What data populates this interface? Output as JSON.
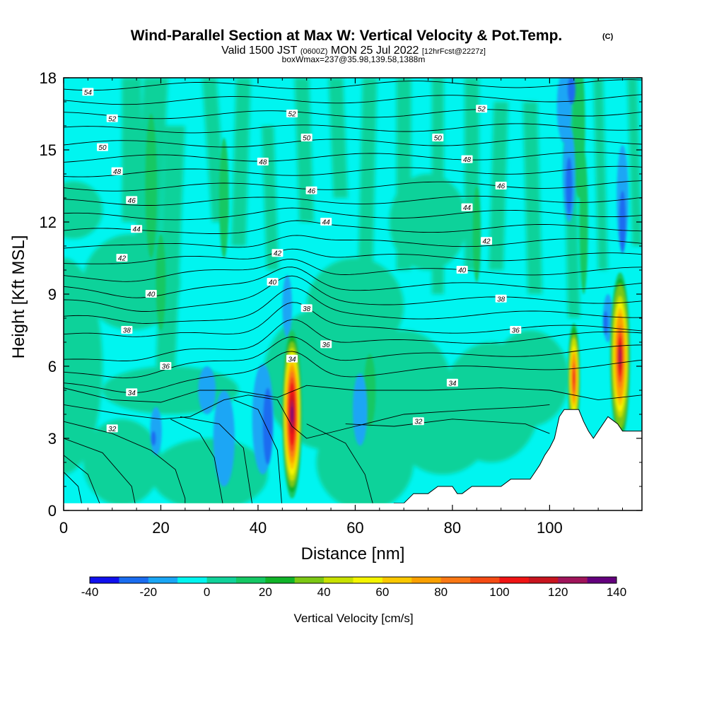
{
  "title": {
    "main": "Wind-Parallel Section at Max W: Vertical Velocity & Pot.Temp.",
    "copyright": "(C)",
    "valid_prefix": "Valid 1500 JST",
    "valid_utc": "(0600Z)",
    "valid_date": "MON 25 Jul 2022",
    "forecast": "[12hrFcst@2227z]",
    "box_info": "boxWmax=237@35.98,139.58,1388m"
  },
  "chart_data": {
    "type": "heatmap",
    "xlabel": "Distance [nm]",
    "ylabel": "Height [Kft MSL]",
    "xlim": [
      0,
      119
    ],
    "ylim": [
      0,
      18
    ],
    "x_ticks": [
      "0",
      "20",
      "40",
      "60",
      "80",
      "100"
    ],
    "x_tick_values": [
      0,
      20,
      40,
      60,
      80,
      100
    ],
    "y_ticks": [
      "0",
      "3",
      "6",
      "9",
      "12",
      "15",
      "18"
    ],
    "y_tick_values": [
      0,
      3,
      6,
      9,
      12,
      15,
      18
    ],
    "colorbar": {
      "title": "Vertical Velocity [cm/s]",
      "labels": [
        "-40",
        "-20",
        "0",
        "20",
        "40",
        "60",
        "80",
        "100",
        "120",
        "140"
      ],
      "levels": [
        -40,
        -30,
        -20,
        -10,
        0,
        10,
        20,
        30,
        40,
        50,
        60,
        70,
        80,
        90,
        100,
        110,
        120,
        130,
        140
      ],
      "colors": [
        "#1010ee",
        "#1a6cf0",
        "#1aa6f5",
        "#00f5f0",
        "#10d29a",
        "#14c864",
        "#10b428",
        "#7cc814",
        "#c8e100",
        "#f5f500",
        "#fac800",
        "#faa000",
        "#fa7814",
        "#f54b14",
        "#f01414",
        "#c8141e",
        "#a0145a",
        "#64007d"
      ]
    },
    "terrain": [
      [
        68,
        0
      ],
      [
        68,
        0.3
      ],
      [
        70,
        0.3
      ],
      [
        72,
        0.7
      ],
      [
        75,
        0.7
      ],
      [
        77,
        1
      ],
      [
        80,
        1
      ],
      [
        81,
        0.7
      ],
      [
        82,
        0.7
      ],
      [
        84,
        1
      ],
      [
        90,
        1
      ],
      [
        92,
        1.3
      ],
      [
        96,
        1.3
      ],
      [
        97,
        1.6
      ],
      [
        98,
        1.9
      ],
      [
        99,
        2.3
      ],
      [
        100,
        2.6
      ],
      [
        101,
        3
      ],
      [
        102,
        3.9
      ],
      [
        103,
        4.2
      ],
      [
        106,
        4.2
      ],
      [
        107,
        3.7
      ],
      [
        108,
        3.3
      ],
      [
        109,
        3
      ],
      [
        110,
        3.3
      ],
      [
        112,
        3.9
      ],
      [
        114,
        3.6
      ],
      [
        115,
        3.3
      ],
      [
        119,
        3.3
      ],
      [
        119,
        0
      ]
    ],
    "isentropes": [
      {
        "label": "32",
        "label_x": 10
      },
      {
        "label": "34",
        "label_x": 14
      },
      {
        "label": "36",
        "label_x": 21
      },
      {
        "label": "38",
        "label_x": 13
      },
      {
        "label": "40",
        "label_x": 18
      },
      {
        "label": "42",
        "label_x": 12
      },
      {
        "label": "44",
        "label_x": 15
      },
      {
        "label": "46",
        "label_x": 14
      },
      {
        "label": "48",
        "label_x": 11
      },
      {
        "label": "50",
        "label_x": 8
      },
      {
        "label": "52",
        "label_x": 10
      },
      {
        "label": "54",
        "label_x": 5
      }
    ],
    "isentrope_extra_labels": [
      {
        "label": "34",
        "x": 47
      },
      {
        "label": "36",
        "x": 54
      },
      {
        "label": "38",
        "x": 50
      },
      {
        "label": "40",
        "x": 43
      },
      {
        "label": "42",
        "x": 44
      },
      {
        "label": "44",
        "x": 54
      },
      {
        "label": "46",
        "x": 51
      },
      {
        "label": "48",
        "x": 41
      },
      {
        "label": "50",
        "x": 50
      },
      {
        "label": "52",
        "x": 47
      },
      {
        "label": "32",
        "x": 73
      },
      {
        "label": "34",
        "x": 80
      },
      {
        "label": "36",
        "x": 93
      },
      {
        "label": "38",
        "x": 90
      },
      {
        "label": "40",
        "x": 82
      },
      {
        "label": "42",
        "x": 87
      },
      {
        "label": "44",
        "x": 83
      },
      {
        "label": "46",
        "x": 90
      },
      {
        "label": "48",
        "x": 83
      },
      {
        "label": "50",
        "x": 77
      },
      {
        "label": "52",
        "x": 86
      }
    ]
  }
}
